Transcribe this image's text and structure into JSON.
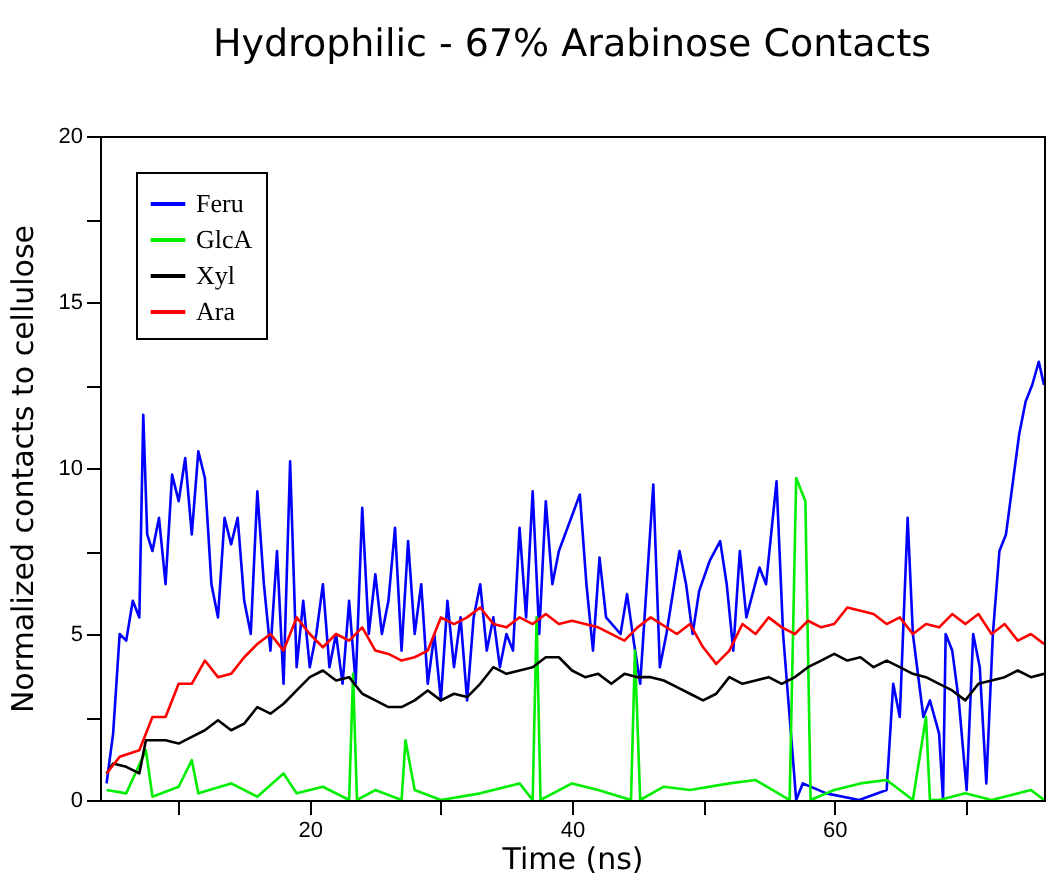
{
  "chart_data": {
    "type": "line",
    "title": "Hydrophilic - 67% Arabinose Contacts",
    "xlabel": "Time (ns)",
    "ylabel": "Normalized contacts to cellulose",
    "xlim": [
      4,
      76
    ],
    "ylim": [
      0,
      20
    ],
    "xticks": [
      {
        "value": 10,
        "label": null
      },
      20,
      {
        "value": 30,
        "label": null
      },
      40,
      {
        "value": 50,
        "label": null
      },
      60,
      {
        "value": 70,
        "label": null
      }
    ],
    "yticks": [
      0,
      {
        "value": 2.5,
        "label": null
      },
      5,
      {
        "value": 7.5,
        "label": null
      },
      10,
      {
        "value": 12.5,
        "label": null
      },
      15,
      {
        "value": 17.5,
        "label": null
      },
      20
    ],
    "grid": false,
    "legend": "top left",
    "marker": "none",
    "line_style": "solid",
    "series": [
      {
        "name": "Feru",
        "color": "#0000ff",
        "x": [
          4.5,
          5,
          5.5,
          6,
          6.5,
          7,
          7.3,
          7.6,
          8,
          8.5,
          9,
          9.5,
          10,
          10.5,
          11,
          11.5,
          12,
          12.5,
          13,
          13.5,
          14,
          14.5,
          15,
          15.5,
          16,
          16.5,
          17,
          17.5,
          18,
          18.5,
          19,
          19.5,
          20,
          20.5,
          21,
          21.5,
          22,
          22.5,
          23,
          23.5,
          24,
          24.5,
          25,
          25.5,
          26,
          26.5,
          27,
          27.5,
          28,
          28.5,
          29,
          29.5,
          30,
          30.5,
          31,
          31.5,
          32,
          32.5,
          33,
          33.5,
          34,
          34.5,
          35,
          35.5,
          36,
          36.5,
          37,
          37.5,
          38,
          38.5,
          39,
          40.6,
          41.1,
          41.6,
          42.1,
          42.6,
          43.7,
          44.2,
          44.7,
          45.2,
          46.2,
          46.7,
          47.2,
          48.2,
          48.7,
          49.2,
          49.7,
          50.5,
          51.3,
          51.8,
          52.3,
          52.8,
          53.3,
          54.3,
          54.8,
          55.6,
          56.1,
          56.6,
          57.1,
          57.6,
          59.4,
          61.9,
          64,
          64.5,
          65,
          65.6,
          66,
          66.8,
          67.3,
          68,
          68.3,
          68.5,
          69,
          69.5,
          70.1,
          70.6,
          71.1,
          71.6,
          72.1,
          72.6,
          73.1,
          73.6,
          74.1,
          74.6,
          75.1,
          75.6,
          76
        ],
        "values": [
          0.5,
          2,
          5,
          4.8,
          6,
          5.5,
          11.6,
          8,
          7.5,
          8.5,
          6.5,
          9.8,
          9,
          10.3,
          8,
          10.5,
          9.7,
          6.5,
          5.5,
          8.5,
          7.7,
          8.5,
          6,
          5,
          9.3,
          6.5,
          4.5,
          7.5,
          3.5,
          10.2,
          4,
          6,
          4,
          5,
          6.5,
          4,
          5,
          3.5,
          6,
          3.5,
          8.8,
          5,
          6.8,
          5,
          6,
          8.2,
          4.5,
          7.8,
          5,
          6.5,
          3.5,
          5,
          3,
          6,
          4,
          5.5,
          3,
          5.5,
          6.5,
          4.5,
          5.5,
          4,
          5,
          4.5,
          8.2,
          5.5,
          9.3,
          5,
          9,
          6.5,
          7.5,
          9.2,
          6.5,
          4.5,
          7.3,
          5.5,
          5,
          6.2,
          4.8,
          3.5,
          9.5,
          4,
          5,
          7.5,
          6.5,
          5,
          6.3,
          7.2,
          7.8,
          6.5,
          4.5,
          7.5,
          5.5,
          7,
          6.5,
          9.6,
          5,
          2.5,
          0,
          0.5,
          0.2,
          0,
          0.3,
          3.5,
          2.5,
          8.5,
          5,
          2.5,
          3,
          2,
          0,
          5,
          4.5,
          3,
          0.3,
          5,
          4,
          0.5,
          5,
          7.5,
          8,
          9.5,
          11,
          12,
          12.5,
          13.2,
          12.5
        ]
      },
      {
        "name": "GlcA",
        "color": "#00ee00",
        "x": [
          4.5,
          6,
          7.5,
          8,
          10,
          11,
          11.5,
          14,
          16,
          18,
          19,
          21,
          23,
          23.3,
          23.6,
          25,
          27,
          27.3,
          28,
          30,
          33,
          36,
          37,
          37.3,
          37.6,
          40,
          42,
          44.5,
          44.8,
          45.2,
          47,
          49,
          52,
          54,
          56.6,
          57.1,
          57.8,
          58.2,
          60,
          62,
          64,
          66,
          67,
          67.3,
          68,
          70,
          72,
          75,
          76
        ],
        "values": [
          0.3,
          0.2,
          1.5,
          0.1,
          0.4,
          1.2,
          0.2,
          0.5,
          0.1,
          0.8,
          0.2,
          0.4,
          0,
          3.8,
          0,
          0.3,
          0,
          1.8,
          0.3,
          0,
          0.2,
          0.5,
          0,
          5.5,
          0,
          0.5,
          0.3,
          0,
          4.5,
          0,
          0.4,
          0.3,
          0.5,
          0.6,
          0,
          9.7,
          9,
          0,
          0.3,
          0.5,
          0.6,
          0,
          2.5,
          0,
          0,
          0.2,
          0,
          0.3,
          0
        ]
      },
      {
        "name": "Xyl",
        "color": "#000000",
        "x": [
          4.5,
          5,
          6,
          7,
          7.5,
          9,
          10,
          11,
          12,
          13,
          14,
          15,
          16,
          17,
          18,
          19,
          20,
          21,
          22,
          23,
          24,
          25,
          26,
          27,
          28,
          29,
          30,
          31,
          32,
          33,
          34,
          35,
          36,
          37,
          38,
          39,
          40,
          41,
          42,
          43,
          44,
          45,
          46,
          47,
          48,
          49,
          50,
          51,
          52,
          53,
          54,
          55,
          56,
          57,
          58,
          59,
          60,
          61,
          62,
          63,
          64,
          65,
          66,
          67,
          68,
          69,
          70,
          71,
          72,
          73,
          74,
          75,
          76
        ],
        "values": [
          0.8,
          1.1,
          1,
          0.8,
          1.8,
          1.8,
          1.7,
          1.9,
          2.1,
          2.4,
          2.1,
          2.3,
          2.8,
          2.6,
          2.9,
          3.3,
          3.7,
          3.9,
          3.6,
          3.7,
          3.2,
          3,
          2.8,
          2.8,
          3,
          3.3,
          3,
          3.2,
          3.1,
          3.5,
          4,
          3.8,
          3.9,
          4,
          4.3,
          4.3,
          3.9,
          3.7,
          3.8,
          3.5,
          3.8,
          3.7,
          3.7,
          3.6,
          3.4,
          3.2,
          3,
          3.2,
          3.7,
          3.5,
          3.6,
          3.7,
          3.5,
          3.7,
          4,
          4.2,
          4.4,
          4.2,
          4.3,
          4,
          4.2,
          4,
          3.8,
          3.7,
          3.5,
          3.3,
          3,
          3.5,
          3.6,
          3.7,
          3.9,
          3.7,
          3.8
        ]
      },
      {
        "name": "Ara",
        "color": "#ff0000",
        "x": [
          4.5,
          5.5,
          7,
          8,
          9,
          10,
          11,
          12,
          13,
          14,
          15,
          16,
          17,
          18,
          19,
          20,
          21,
          22,
          23,
          24,
          25,
          26,
          27,
          28,
          29,
          30,
          31,
          32,
          33,
          34,
          35,
          36,
          37,
          38,
          39,
          40,
          42,
          44,
          45,
          46,
          48,
          49,
          50,
          51,
          52,
          53,
          54,
          55,
          56,
          57,
          58,
          59,
          60,
          61,
          62,
          63,
          64,
          65,
          66,
          67,
          68,
          69,
          70,
          71,
          72,
          73,
          74,
          75,
          76
        ],
        "values": [
          0.8,
          1.3,
          1.5,
          2.5,
          2.5,
          3.5,
          3.5,
          4.2,
          3.7,
          3.8,
          4.3,
          4.7,
          5,
          4.5,
          5.5,
          5,
          4.6,
          5,
          4.8,
          5.2,
          4.5,
          4.4,
          4.2,
          4.3,
          4.5,
          5.5,
          5.3,
          5.5,
          5.8,
          5.3,
          5.2,
          5.5,
          5.3,
          5.6,
          5.3,
          5.4,
          5.2,
          4.8,
          5.2,
          5.5,
          5,
          5.3,
          4.6,
          4.1,
          4.5,
          5.3,
          5,
          5.5,
          5.2,
          5,
          5.4,
          5.2,
          5.3,
          5.8,
          5.7,
          5.6,
          5.3,
          5.5,
          5,
          5.3,
          5.2,
          5.6,
          5.3,
          5.6,
          5,
          5.3,
          4.8,
          5,
          4.7
        ]
      }
    ]
  }
}
